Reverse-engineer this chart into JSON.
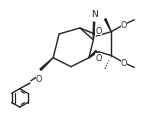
{
  "bg_color": "#ffffff",
  "line_color": "#222222",
  "line_width": 1.0,
  "figsize": [
    1.51,
    1.16
  ],
  "dpi": 100,
  "xlim": [
    0,
    10
  ],
  "ylim": [
    0,
    7.7
  ]
}
